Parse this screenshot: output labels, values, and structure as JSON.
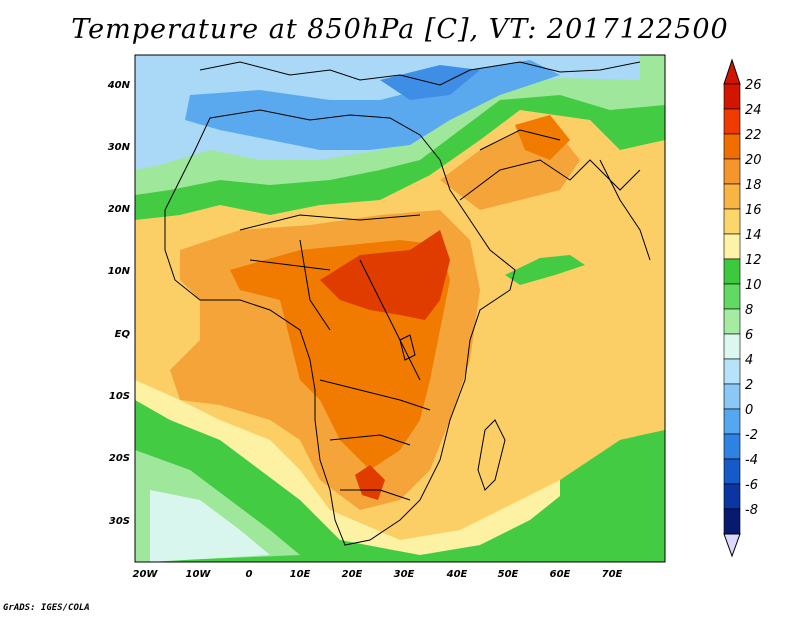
{
  "title": "Temperature at 850hPa [C], VT: 2017122500",
  "footer": "GrADS: IGES/COLA",
  "map": {
    "lon_labels": [
      "20W",
      "10W",
      "0",
      "10E",
      "20E",
      "30E",
      "40E",
      "50E",
      "60E",
      "70E"
    ],
    "lat_labels": [
      "40N",
      "30N",
      "20N",
      "10N",
      "EQ",
      "10S",
      "20S",
      "30S"
    ]
  },
  "colorbar": {
    "labels": [
      "26",
      "24",
      "22",
      "20",
      "18",
      "16",
      "14",
      "12",
      "10",
      "8",
      "6",
      "4",
      "2",
      "0",
      "-2",
      "-4",
      "-6",
      "-8"
    ],
    "colors": [
      "#d21500",
      "#f03a00",
      "#f06e00",
      "#f5962d",
      "#f8b545",
      "#fbd76b",
      "#fcf3a6",
      "#3dc93d",
      "#62d962",
      "#a5eba1",
      "#dcf7ef",
      "#b6e2fa",
      "#8ac8f7",
      "#55a7f0",
      "#2f82e3",
      "#1659c9",
      "#0a35a2",
      "#081a70"
    ],
    "top_arrow_color": "#d21500",
    "bottom_arrow_color": "#dcd9ff"
  },
  "field_colors": {
    "very_hot": "#e03c00",
    "hot": "#f07b00",
    "warm": "#f5a43a",
    "mild": "#fbcf66",
    "pale": "#fdf1a3",
    "green": "#44cb44",
    "light_green": "#9fe79b",
    "cyan": "#d9f6ee",
    "light_blue": "#a9d9f7",
    "blue": "#5aa9ef",
    "mid_blue": "#3f8ee6"
  }
}
